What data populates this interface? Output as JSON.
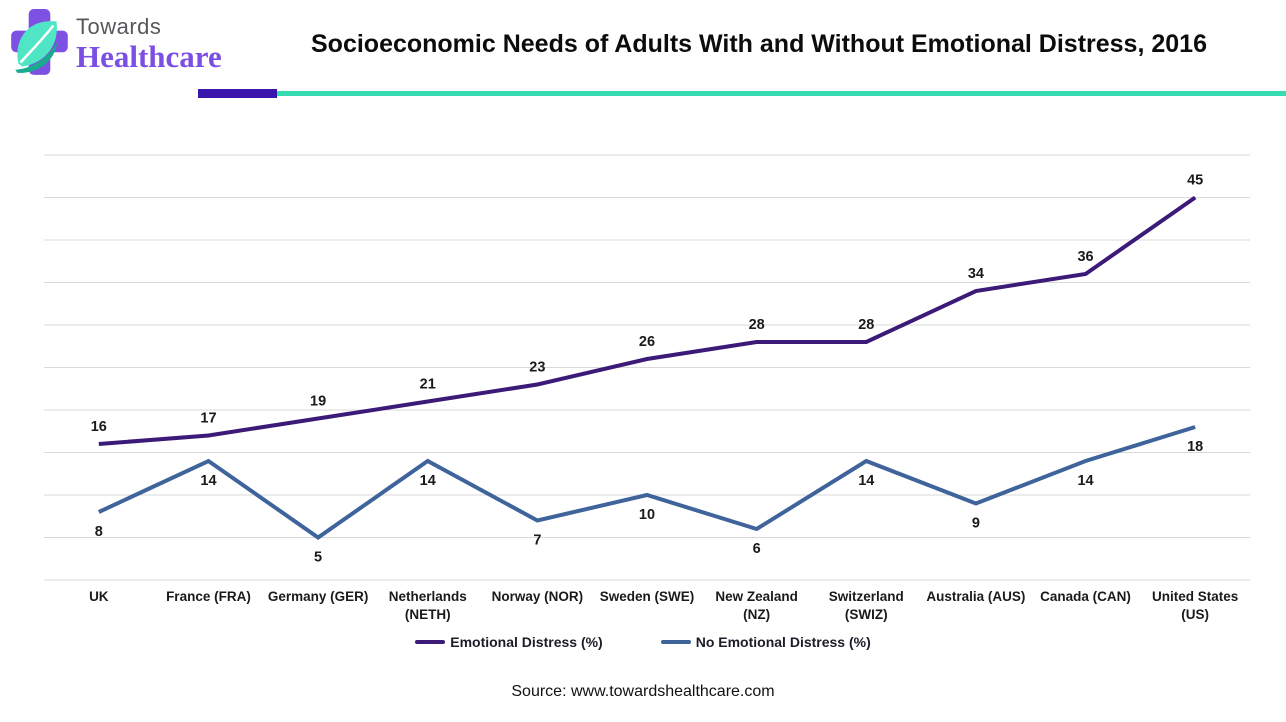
{
  "header": {
    "logo": {
      "towards": "Towards",
      "healthcare": "Healthcare"
    },
    "title": "Socioeconomic Needs of Adults With and Without Emotional Distress, 2016",
    "divider_colors": {
      "purple": "#3a16ad",
      "teal": "#35dcb0"
    }
  },
  "chart_data": {
    "type": "line",
    "title": "Socioeconomic Needs of Adults With and Without Emotional Distress, 2016",
    "categories": [
      "UK",
      "France (FRA)",
      "Germany (GER)",
      "Netherlands\n(NETH)",
      "Norway (NOR)",
      "Sweden (SWE)",
      "New Zealand\n(NZ)",
      "Switzerland\n(SWIZ)",
      "Australia (AUS)",
      "Canada (CAN)",
      "United States\n(US)"
    ],
    "series": [
      {
        "name": "Emotional Distress (%)",
        "color": "#3b1a78",
        "values": [
          16,
          17,
          19,
          21,
          23,
          26,
          28,
          28,
          34,
          36,
          45
        ]
      },
      {
        "name": "No Emotional Distress (%)",
        "color": "#3f639b",
        "values": [
          8,
          14,
          5,
          14,
          7,
          10,
          6,
          14,
          9,
          14,
          18
        ]
      }
    ],
    "xlabel": "",
    "ylabel": "",
    "ylim": [
      0,
      50
    ],
    "grid_step": 5,
    "grid": true,
    "gridline_color": "#d9d9d9",
    "data_label_color": "#1a1a1a",
    "legend_position": "bottom"
  },
  "footer": {
    "source": "Source: www.towardshealthcare.com"
  }
}
